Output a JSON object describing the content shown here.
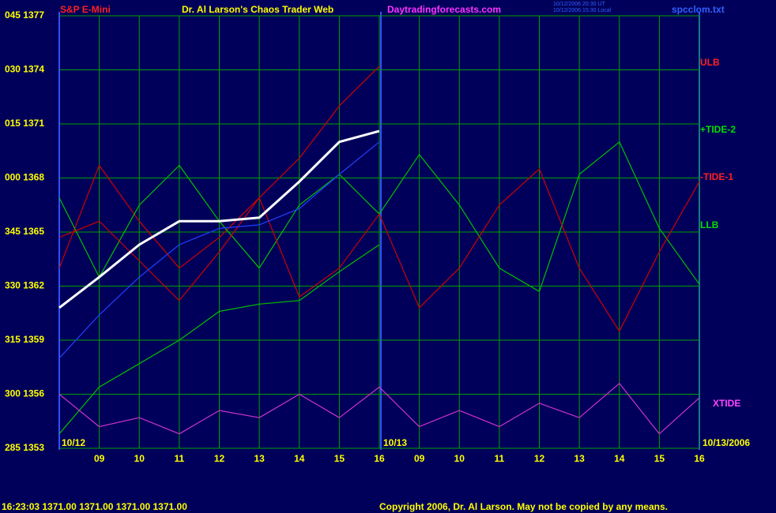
{
  "chart_data": {
    "type": "line",
    "title": "Dr. Al Larson's Chaos Trader Web",
    "subtitle": "S&P E-Mini",
    "site": "Daytradingforecasts.com",
    "file": "spcclom.txt",
    "timestamps": [
      "10/12/2006 20:30 UT",
      "10/12/2006 15:30 Local"
    ],
    "dates": [
      "10/12",
      "10/13",
      "10/13/2006"
    ],
    "status": "16:23:03  1371.00 1371.00 1371.00 1371.00",
    "copyright": "Copyright 2006, Dr. Al Larson. May not be copied by any means.",
    "x": [
      0,
      1,
      2,
      3,
      4,
      5,
      6,
      7,
      8,
      9,
      10,
      11,
      12,
      13,
      14,
      15,
      16
    ],
    "xlim": [
      0,
      16
    ],
    "xticks": [
      {
        "value": 1,
        "label": "09"
      },
      {
        "value": 2,
        "label": "10"
      },
      {
        "value": 3,
        "label": "11"
      },
      {
        "value": 4,
        "label": "12"
      },
      {
        "value": 5,
        "label": "13"
      },
      {
        "value": 6,
        "label": "14"
      },
      {
        "value": 7,
        "label": "15"
      },
      {
        "value": 8,
        "label": "16"
      },
      {
        "value": 9,
        "label": "09"
      },
      {
        "value": 10,
        "label": "10"
      },
      {
        "value": 11,
        "label": "11"
      },
      {
        "value": 12,
        "label": "12"
      },
      {
        "value": 13,
        "label": "13"
      },
      {
        "value": 14,
        "label": "14"
      },
      {
        "value": 15,
        "label": "15"
      },
      {
        "value": 16,
        "label": "16"
      }
    ],
    "ylim": [
      1353,
      1377
    ],
    "yticks": [
      {
        "value": 1377,
        "label": "045 1377"
      },
      {
        "value": 1374,
        "label": "030 1374"
      },
      {
        "value": 1371,
        "label": "015 1371"
      },
      {
        "value": 1368,
        "label": "000 1368"
      },
      {
        "value": 1365,
        "label": "345 1365"
      },
      {
        "value": 1362,
        "label": "330 1362"
      },
      {
        "value": 1359,
        "label": "315 1359"
      },
      {
        "value": 1356,
        "label": "300 1356"
      },
      {
        "value": 1353,
        "label": "285 1353"
      }
    ],
    "grid": true,
    "series": [
      {
        "name": "ULB",
        "color": "#d00000",
        "values": [
          1363.0,
          1368.7,
          1365.6,
          1363.0,
          1364.7,
          1366.9,
          1369.1,
          1372.0,
          1374.2,
          null,
          null,
          null,
          null,
          null,
          null,
          null,
          null
        ]
      },
      {
        "name": "+TIDE-2",
        "color": "#00c000",
        "values": [
          1366.9,
          1362.5,
          1366.5,
          1368.7,
          1365.6,
          1363.0,
          1366.5,
          1368.2,
          1366.0,
          1369.3,
          1366.5,
          1363.0,
          1361.7,
          1368.2,
          1370.0,
          1365.2,
          1362.1
        ]
      },
      {
        "name": "-TIDE-1",
        "color": "#d00000",
        "values": [
          1364.7,
          1365.6,
          1363.4,
          1361.2,
          1363.9,
          1366.9,
          1361.4,
          1363.0,
          1366.0,
          1360.8,
          1363.0,
          1366.5,
          1368.5,
          1363.0,
          1359.5,
          1363.9,
          1367.8
        ]
      },
      {
        "name": "LLB",
        "color": "#00c000",
        "values": [
          1353.8,
          1356.4,
          1357.7,
          1359.0,
          1360.6,
          1361.0,
          1361.2,
          1362.8,
          1364.3,
          null,
          null,
          null,
          null,
          null,
          null,
          null,
          null
        ]
      },
      {
        "name": "XTIDE",
        "color": "#cc33cc",
        "values": [
          1356.0,
          1354.2,
          1354.7,
          1353.8,
          1355.1,
          1354.7,
          1356.0,
          1354.7,
          1356.4,
          1354.2,
          1355.1,
          1354.2,
          1355.5,
          1354.7,
          1356.6,
          1353.8,
          1355.8
        ]
      }
    ],
    "price": {
      "color": "#ffffff",
      "values": [
        1360.8,
        1362.5,
        1364.3,
        1365.6,
        1365.6,
        1365.8,
        1367.8,
        1370.0,
        1370.6,
        null,
        null,
        null,
        null,
        null,
        null,
        null,
        null
      ]
    },
    "average": {
      "color": "#2040ff",
      "values": [
        1358.0,
        1360.4,
        1362.5,
        1364.3,
        1365.2,
        1365.4,
        1366.3,
        1368.2,
        1370.0,
        null,
        null,
        null,
        null,
        null,
        null,
        null,
        null
      ]
    }
  }
}
